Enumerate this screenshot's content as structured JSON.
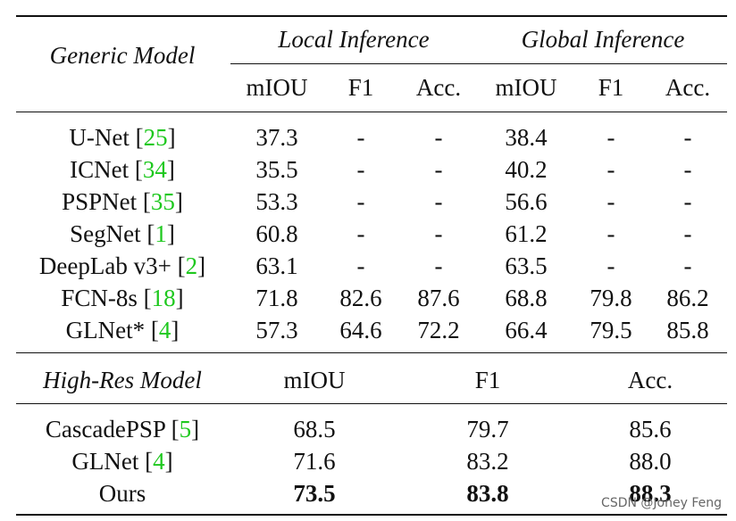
{
  "header": {
    "generic_model": "Generic Model",
    "local_inference": "Local Inference",
    "global_inference": "Global Inference",
    "subcols": [
      "mIOU",
      "F1",
      "Acc.",
      "mIOU",
      "F1",
      "Acc."
    ]
  },
  "generic_rows": [
    {
      "name": "U-Net",
      "cite": "25",
      "values": [
        "37.3",
        "-",
        "-",
        "38.4",
        "-",
        "-"
      ]
    },
    {
      "name": "ICNet",
      "cite": "34",
      "values": [
        "35.5",
        "-",
        "-",
        "40.2",
        "-",
        "-"
      ]
    },
    {
      "name": "PSPNet",
      "cite": "35",
      "values": [
        "53.3",
        "-",
        "-",
        "56.6",
        "-",
        "-"
      ]
    },
    {
      "name": "SegNet",
      "cite": "1",
      "values": [
        "60.8",
        "-",
        "-",
        "61.2",
        "-",
        "-"
      ]
    },
    {
      "name": "DeepLab v3+",
      "cite": "2",
      "values": [
        "63.1",
        "-",
        "-",
        "63.5",
        "-",
        "-"
      ]
    },
    {
      "name": "FCN-8s",
      "cite": "18",
      "values": [
        "71.8",
        "82.6",
        "87.6",
        "68.8",
        "79.8",
        "86.2"
      ]
    },
    {
      "name": "GLNet*",
      "cite": "4",
      "values": [
        "57.3",
        "64.6",
        "72.2",
        "66.4",
        "79.5",
        "85.8"
      ]
    }
  ],
  "highres_header": {
    "label": "High-Res Model",
    "cols": [
      "mIOU",
      "F1",
      "Acc."
    ]
  },
  "highres_rows": [
    {
      "name": "CascadePSP",
      "cite": "5",
      "values": [
        "68.5",
        "79.7",
        "85.6"
      ],
      "bold": false
    },
    {
      "name": "GLNet",
      "cite": "4",
      "values": [
        "71.6",
        "83.2",
        "88.0"
      ],
      "bold": false
    },
    {
      "name": "Ours",
      "cite": "",
      "values": [
        "73.5",
        "83.8",
        "88.3"
      ],
      "bold": true
    }
  ],
  "watermark": "CSDN @Joney Feng"
}
